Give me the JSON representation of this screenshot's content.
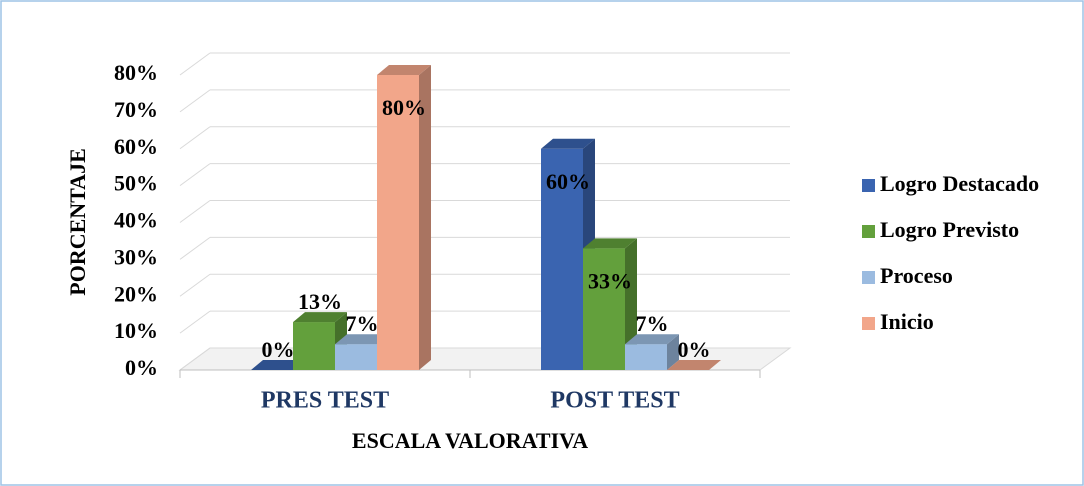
{
  "chart_data": {
    "type": "bar3d",
    "x_label": "ESCALA VALORATIVA",
    "y_label": "PORCENTAJE",
    "categories": [
      "PRES TEST",
      "POST TEST"
    ],
    "series": [
      {
        "name": "Logro Destacado",
        "color": "#3a64b0",
        "values": [
          0,
          60
        ],
        "value_labels": [
          "0%",
          "60%"
        ]
      },
      {
        "name": "Logro Previsto",
        "color": "#63a03c",
        "values": [
          13,
          33
        ],
        "value_labels": [
          "13%",
          "33%"
        ]
      },
      {
        "name": "Proceso",
        "color": "#9bbbe0",
        "values": [
          7,
          7
        ],
        "value_labels": [
          "7%",
          "7%"
        ]
      },
      {
        "name": "Inicio",
        "color": "#f2a68a",
        "values": [
          80,
          0
        ],
        "value_labels": [
          "80%",
          "0%"
        ]
      }
    ],
    "ylim": [
      0,
      80
    ],
    "yticks": [
      {
        "value": 0,
        "label": "0%"
      },
      {
        "value": 10,
        "label": "10%"
      },
      {
        "value": 20,
        "label": "20%"
      },
      {
        "value": 30,
        "label": "30%"
      },
      {
        "value": 40,
        "label": "40%"
      },
      {
        "value": 50,
        "label": "50%"
      },
      {
        "value": 60,
        "label": "60%"
      },
      {
        "value": 70,
        "label": "70%"
      },
      {
        "value": 80,
        "label": "80%"
      }
    ],
    "grid": true,
    "legend": "right"
  }
}
